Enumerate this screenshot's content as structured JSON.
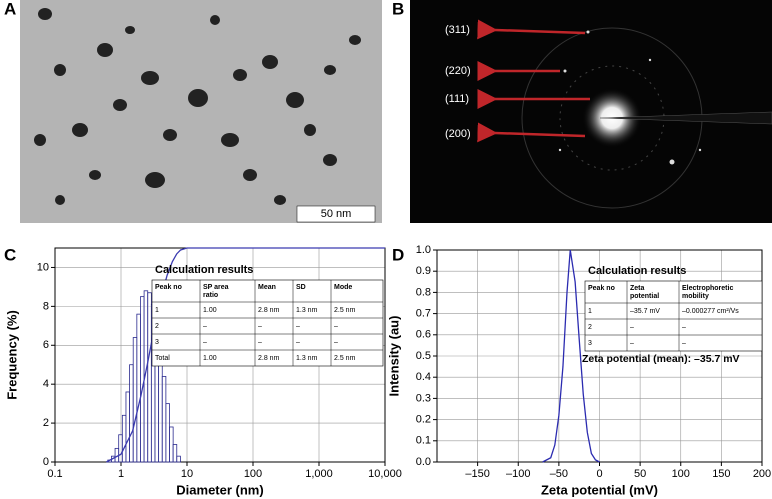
{
  "panels": [
    "A",
    "B",
    "C",
    "D"
  ],
  "tem_image": {
    "scale_bar": "50 nm"
  },
  "saed_image": {
    "labels": [
      "(311)",
      "(220)",
      "(111)",
      "(200)"
    ]
  },
  "chart_data": [
    {
      "type": "histogram",
      "x_label": "Diameter (nm)",
      "y_label": "Frequency (%)",
      "log_x": true,
      "grid": true,
      "color": "#2b2b8f",
      "bins": [
        0.631,
        0.716,
        0.813,
        0.923,
        1.047,
        1.189,
        1.349,
        1.531,
        1.738,
        1.972,
        2.239,
        2.541,
        2.884,
        3.273,
        3.715,
        4.217,
        4.786,
        5.433,
        6.166,
        6.998,
        7.943
      ],
      "values": [
        0.1,
        0.3,
        0.7,
        1.4,
        2.4,
        3.6,
        5.0,
        6.4,
        7.6,
        8.5,
        8.8,
        8.7,
        8.1,
        7.1,
        5.8,
        4.4,
        3.0,
        1.8,
        0.9,
        0.3
      ],
      "cumulative": {
        "color": "#3a3ab0",
        "x": [
          0.6,
          1,
          1.5,
          2,
          2.5,
          3,
          4,
          5,
          6,
          7,
          8,
          10,
          10000
        ],
        "values": [
          0,
          0.4,
          1.6,
          3.4,
          5.0,
          6.4,
          8.4,
          9.6,
          10.3,
          10.7,
          10.9,
          11,
          11
        ]
      },
      "xlim": [
        0.1,
        10000
      ],
      "xticks": [
        0.1,
        1,
        10,
        100,
        {
          "value": 1000,
          "label": "1,000"
        },
        {
          "value": 10000,
          "label": "10,000"
        }
      ],
      "ylim": [
        0,
        11
      ],
      "yticks": [
        0,
        2,
        4,
        6,
        8,
        10
      ],
      "inset": {
        "title": "Calculation results",
        "columns": [
          "Peak no",
          "SP area ratio",
          "Mean",
          "SD",
          "Mode"
        ],
        "rows": [
          [
            "1",
            "1.00",
            "2.8 nm",
            "1.3 nm",
            "2.5 nm"
          ],
          [
            "2",
            "–",
            "–",
            "–",
            "–"
          ],
          [
            "3",
            "–",
            "–",
            "–",
            "–"
          ],
          [
            "Total",
            "1.00",
            "2.8 nm",
            "1.3 nm",
            "2.5 nm"
          ]
        ]
      }
    },
    {
      "type": "line",
      "x_label": "Zeta potential (mV)",
      "y_label": "Intensity (au)",
      "grid": true,
      "color": "#2b2bb0",
      "x": [
        -70,
        -60,
        -55,
        -50,
        -45,
        -40,
        -36,
        -30,
        -25,
        -20,
        -15,
        -10,
        -5,
        0
      ],
      "values": [
        0,
        0.02,
        0.08,
        0.22,
        0.45,
        0.8,
        1.0,
        0.85,
        0.58,
        0.32,
        0.14,
        0.04,
        0.01,
        0
      ],
      "xlim": [
        -200,
        200
      ],
      "xticks": [
        {
          "value": -150,
          "label": "–150"
        },
        {
          "value": -100,
          "label": "–100"
        },
        {
          "value": -50,
          "label": "–50"
        },
        0,
        50,
        100,
        150,
        200
      ],
      "ylim": [
        0,
        1
      ],
      "yticks": [
        {
          "value": 0,
          "label": "0.0"
        },
        0.1,
        0.2,
        0.3,
        0.4,
        0.5,
        0.6,
        0.7,
        0.8,
        0.9,
        {
          "value": 1,
          "label": "1.0"
        }
      ],
      "annotation": "Zeta potential (mean): –35.7 mV",
      "inset": {
        "title": "Calculation results",
        "columns": [
          "Peak no",
          "Zeta potential",
          "Electrophoretic mobility"
        ],
        "rows": [
          [
            "1",
            "–35.7 mV",
            "–0.000277 cm²/Vs"
          ],
          [
            "2",
            "–",
            "–"
          ],
          [
            "3",
            "–",
            "–"
          ]
        ]
      }
    }
  ]
}
